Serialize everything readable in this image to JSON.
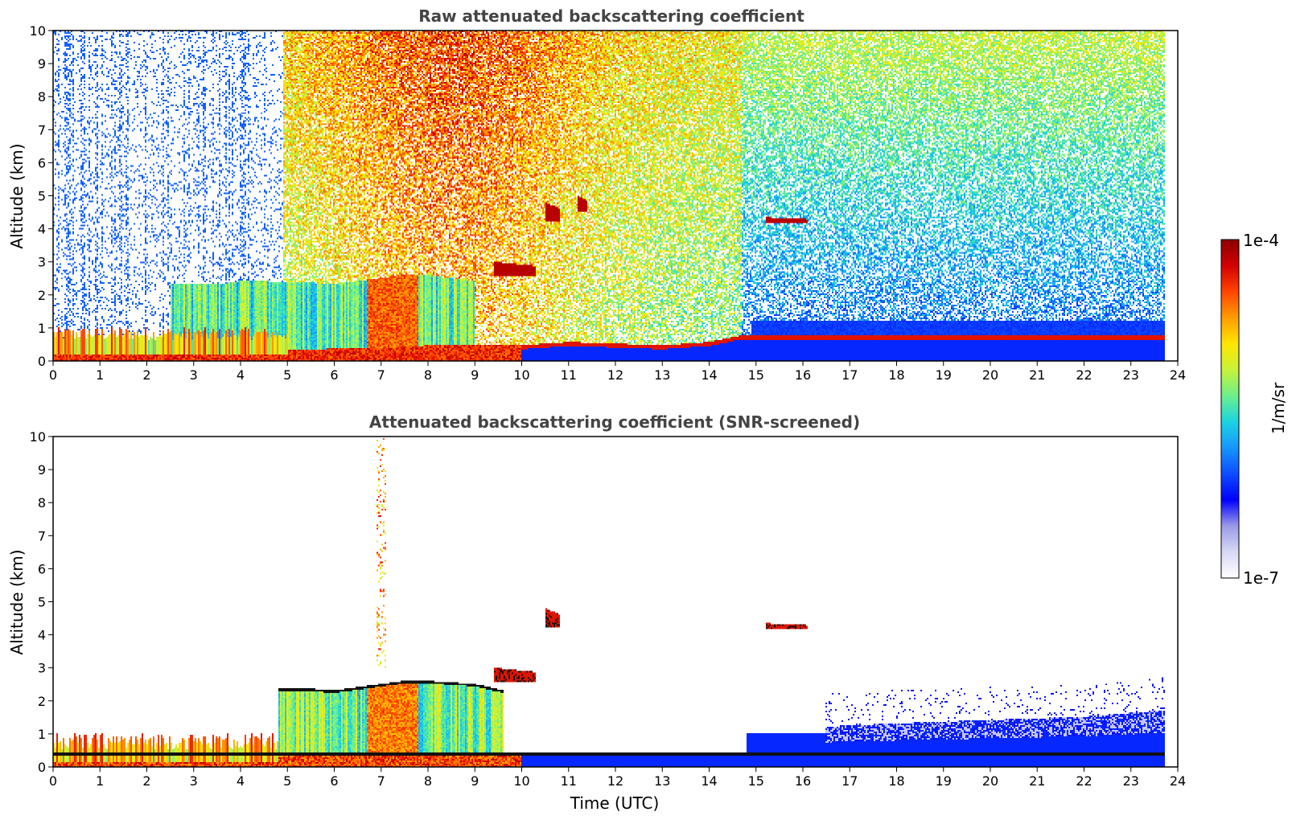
{
  "colors": {
    "colormap": [
      "#ffffff",
      "#d8d8f6",
      "#9a9ae8",
      "#0000ff",
      "#0d4cff",
      "#1696ff",
      "#1bd4e0",
      "#6cf08a",
      "#c8f23a",
      "#ffe600",
      "#ff9c00",
      "#ff4400",
      "#d20000",
      "#8b0000"
    ],
    "frame": "#000000",
    "title": "#444444",
    "cloud_black": "#111111"
  },
  "chart_data": [
    {
      "type": "heatmap",
      "title": "Raw attenuated backscattering coefficient",
      "xlabel": "",
      "ylabel": "Altitude (km)",
      "xlim": [
        0,
        24
      ],
      "ylim": [
        0,
        10
      ],
      "xticks": [
        "0",
        "1",
        "2",
        "3",
        "4",
        "5",
        "6",
        "7",
        "8",
        "9",
        "10",
        "11",
        "12",
        "13",
        "14",
        "15",
        "16",
        "17",
        "18",
        "19",
        "20",
        "21",
        "22",
        "23",
        "24"
      ],
      "yticks": [
        "0",
        "1",
        "2",
        "3",
        "4",
        "5",
        "6",
        "7",
        "8",
        "9",
        "10"
      ],
      "data_time_range": [
        0,
        23.75
      ],
      "features": [
        {
          "kind": "boundary_layer_top_km",
          "x": [
            0,
            1,
            2,
            3,
            4,
            5,
            6,
            7,
            8,
            9,
            10,
            11,
            12,
            13,
            14,
            14.7
          ],
          "y": [
            0.25,
            0.2,
            0.2,
            0.2,
            0.2,
            0.3,
            0.35,
            0.35,
            0.45,
            0.45,
            0.45,
            0.55,
            0.5,
            0.45,
            0.55,
            0.75
          ]
        },
        {
          "kind": "elevated_aerosol_layer_top_km",
          "x": [
            2.5,
            3,
            3.5,
            4,
            4.5,
            5,
            5.5,
            6,
            6.5,
            7,
            7.5,
            8,
            9
          ],
          "y": [
            2.3,
            2.3,
            2.3,
            2.4,
            2.4,
            2.35,
            2.35,
            2.3,
            2.4,
            2.5,
            2.6,
            2.6,
            2.4
          ]
        },
        {
          "kind": "cloud_layer",
          "time_start": 9.4,
          "time_end": 10.3,
          "base_km": 2.55,
          "top_km": 3.0
        },
        {
          "kind": "cloud_layer",
          "time_start": 10.5,
          "time_end": 10.8,
          "base_km": 4.2,
          "top_km": 4.8
        },
        {
          "kind": "cloud_layer",
          "time_start": 11.2,
          "time_end": 11.4,
          "base_km": 4.5,
          "top_km": 5.0
        },
        {
          "kind": "cloud_layer",
          "time_start": 15.2,
          "time_end": 16.1,
          "base_km": 4.15,
          "top_km": 4.35
        }
      ]
    },
    {
      "type": "heatmap",
      "title": "Attenuated backscattering coefficient (SNR-screened)",
      "xlabel": "Time (UTC)",
      "ylabel": "Altitude (km)",
      "xlim": [
        0,
        24
      ],
      "ylim": [
        0,
        10
      ],
      "xticks": [
        "0",
        "1",
        "2",
        "3",
        "4",
        "5",
        "6",
        "7",
        "8",
        "9",
        "10",
        "11",
        "12",
        "13",
        "14",
        "15",
        "16",
        "17",
        "18",
        "19",
        "20",
        "21",
        "22",
        "23",
        "24"
      ],
      "yticks": [
        "0",
        "1",
        "2",
        "3",
        "4",
        "5",
        "6",
        "7",
        "8",
        "9",
        "10"
      ],
      "data_time_range": [
        0,
        23.75
      ],
      "features": [
        {
          "kind": "elevated_aerosol_layer_top_km",
          "x": [
            4.8,
            5.5,
            6,
            6.5,
            7,
            7.5,
            8,
            9,
            9.6
          ],
          "y": [
            2.35,
            2.35,
            2.3,
            2.4,
            2.5,
            2.6,
            2.6,
            2.5,
            2.3
          ]
        },
        {
          "kind": "cloud_layer",
          "time_start": 9.4,
          "time_end": 10.3,
          "base_km": 2.55,
          "top_km": 3.0
        },
        {
          "kind": "cloud_layer",
          "time_start": 10.5,
          "time_end": 10.8,
          "base_km": 4.2,
          "top_km": 4.8
        },
        {
          "kind": "cloud_layer",
          "time_start": 15.2,
          "time_end": 16.1,
          "base_km": 4.15,
          "top_km": 4.35
        },
        {
          "kind": "residual_layer_top_km",
          "x": [
            16.5,
            18,
            20,
            22,
            23.75
          ],
          "y": [
            1.2,
            1.3,
            1.4,
            1.5,
            1.7
          ]
        }
      ]
    }
  ],
  "colorbar": {
    "label": "1/m/sr",
    "max_label": "1e-4",
    "min_label": "1e-7",
    "scale": "log",
    "range": [
      1e-07,
      0.0001
    ]
  }
}
